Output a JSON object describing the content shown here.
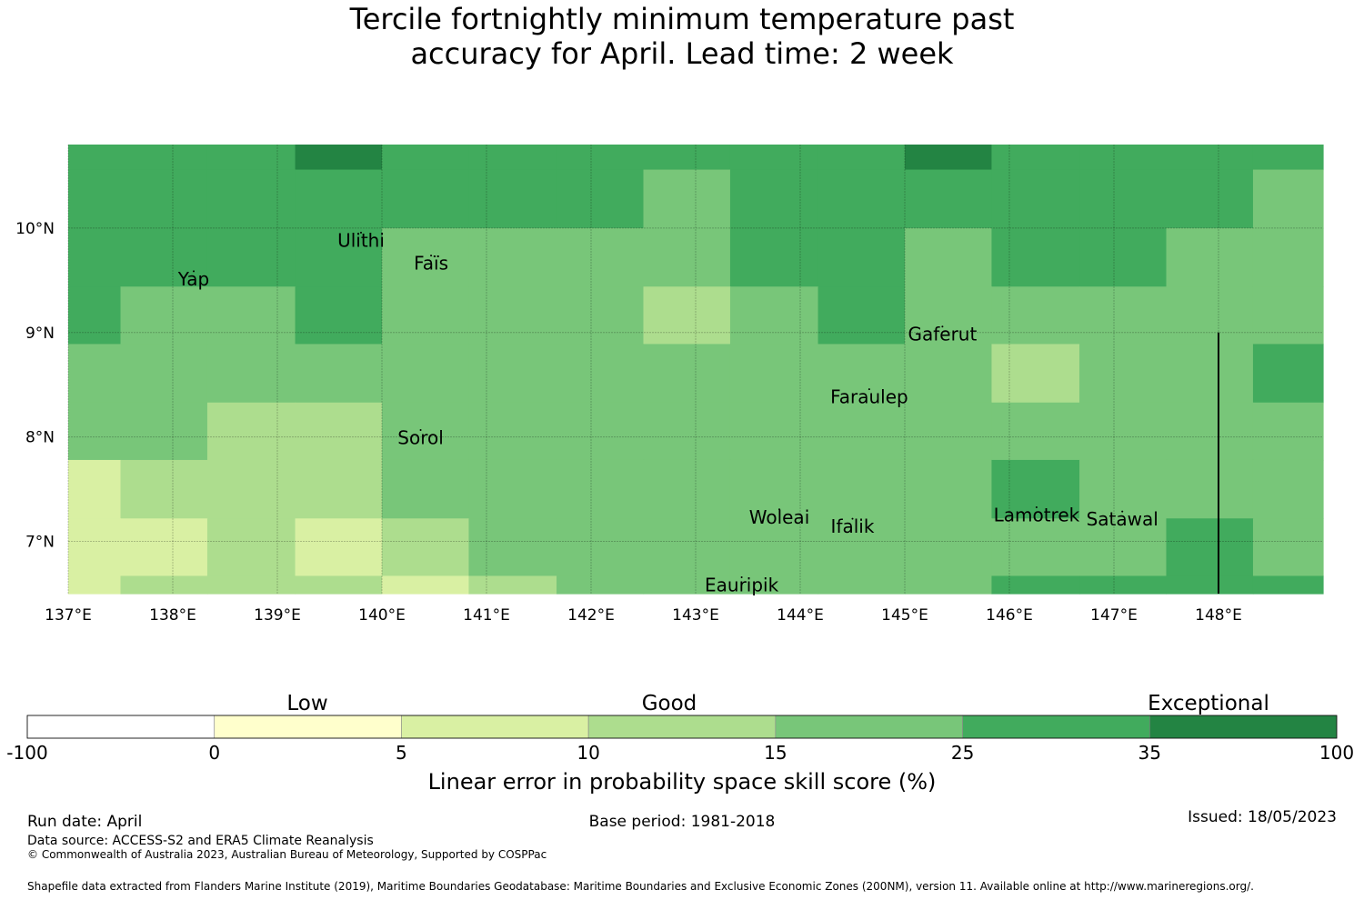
{
  "title_line1": "Tercile fortnightly minimum temperature past",
  "title_line2": "accuracy for April. Lead time: 2 week",
  "map": {
    "lon_range": [
      137.0,
      149.0
    ],
    "lat_range": [
      6.5,
      10.8
    ],
    "x_ticks": [
      {
        "value": 137,
        "label": "137°E"
      },
      {
        "value": 138,
        "label": "138°E"
      },
      {
        "value": 139,
        "label": "139°E"
      },
      {
        "value": 140,
        "label": "140°E"
      },
      {
        "value": 141,
        "label": "141°E"
      },
      {
        "value": 142,
        "label": "142°E"
      },
      {
        "value": 143,
        "label": "143°E"
      },
      {
        "value": 144,
        "label": "144°E"
      },
      {
        "value": 145,
        "label": "145°E"
      },
      {
        "value": 146,
        "label": "146°E"
      },
      {
        "value": 147,
        "label": "147°E"
      },
      {
        "value": 148,
        "label": "148°E"
      }
    ],
    "y_ticks": [
      {
        "value": 7,
        "label": "7°N"
      },
      {
        "value": 8,
        "label": "8°N"
      },
      {
        "value": 9,
        "label": "9°N"
      },
      {
        "value": 10,
        "label": "10°N"
      }
    ],
    "grid_cell_lons": [
      137.0,
      137.5,
      138.33,
      139.17,
      140.0,
      140.83,
      141.67,
      142.5,
      143.33,
      144.17,
      145.0,
      145.83,
      146.67,
      147.5,
      148.33,
      149.0
    ],
    "grid_cell_lats": [
      10.8,
      10.56,
      10.0,
      9.44,
      8.89,
      8.33,
      7.78,
      7.22,
      6.67,
      6.5
    ],
    "grid_class_rows": [
      [
        5,
        5,
        5,
        6,
        5,
        5,
        5,
        5,
        5,
        5,
        6,
        5,
        5,
        5,
        5
      ],
      [
        5,
        5,
        5,
        5,
        5,
        5,
        5,
        4,
        5,
        5,
        5,
        5,
        5,
        5,
        4
      ],
      [
        5,
        5,
        5,
        5,
        4,
        4,
        4,
        4,
        5,
        5,
        4,
        5,
        5,
        4,
        4
      ],
      [
        5,
        4,
        4,
        5,
        4,
        4,
        4,
        3,
        4,
        5,
        4,
        4,
        4,
        4,
        4
      ],
      [
        4,
        4,
        4,
        4,
        4,
        4,
        4,
        4,
        4,
        4,
        4,
        3,
        4,
        4,
        5
      ],
      [
        4,
        4,
        3,
        3,
        4,
        4,
        4,
        4,
        4,
        4,
        4,
        4,
        4,
        4,
        4
      ],
      [
        2,
        3,
        3,
        3,
        4,
        4,
        4,
        4,
        4,
        4,
        4,
        5,
        4,
        4,
        4
      ],
      [
        2,
        2,
        3,
        2,
        3,
        4,
        4,
        4,
        4,
        4,
        4,
        4,
        4,
        5,
        4
      ],
      [
        2,
        3,
        3,
        3,
        2,
        3,
        4,
        4,
        4,
        4,
        4,
        5,
        5,
        5,
        5
      ]
    ],
    "boundary_line_lon": 148.0,
    "boundary_line_lat_top": 9.0,
    "places": [
      {
        "name": "Ulithi",
        "lon": 139.8,
        "lat": 9.87
      },
      {
        "name": "Faïs",
        "lon": 140.47,
        "lat": 9.65
      },
      {
        "name": "Yap",
        "lon": 138.2,
        "lat": 9.5
      },
      {
        "name": "Gaferut",
        "lon": 145.36,
        "lat": 8.97
      },
      {
        "name": "Faraulep",
        "lon": 144.66,
        "lat": 8.37
      },
      {
        "name": "Sorol",
        "lon": 140.37,
        "lat": 7.98
      },
      {
        "name": "Woleai",
        "lon": 143.8,
        "lat": 7.22
      },
      {
        "name": "Ifalik",
        "lon": 144.5,
        "lat": 7.13
      },
      {
        "name": "Lamotrek",
        "lon": 146.26,
        "lat": 7.24
      },
      {
        "name": "Satawal",
        "lon": 147.08,
        "lat": 7.2
      },
      {
        "name": "Eauripik",
        "lon": 143.44,
        "lat": 6.57
      }
    ]
  },
  "colorbar": {
    "boundaries": [
      "-100",
      "0",
      "5",
      "10",
      "15",
      "25",
      "35",
      "100"
    ],
    "colors": [
      "#ffffff",
      "#ffffcc",
      "#d9f0a3",
      "#addd8e",
      "#78c679",
      "#41ab5d",
      "#238443"
    ],
    "category_labels": [
      "Low",
      "Good",
      "Exceptional"
    ],
    "axis_label": "Linear error in probability space skill score (%)"
  },
  "footer": {
    "run_date": "Run date: April",
    "base_period": "Base period: 1981-2018",
    "issued": "Issued: 18/05/2023",
    "data_source": "Data source: ACCESS-S2 and ERA5 Climate Reanalysis",
    "copyright": "© Commonwealth of Australia 2023, Australian Bureau of Meteorology, Supported by COSPPac",
    "shapefile": "Shapefile data extracted from Flanders Marine Institute (2019), Maritime Boundaries Geodatabase: Maritime Boundaries and Exclusive Economic Zones (200NM), version 11. Available online at http://www.marineregions.org/."
  }
}
